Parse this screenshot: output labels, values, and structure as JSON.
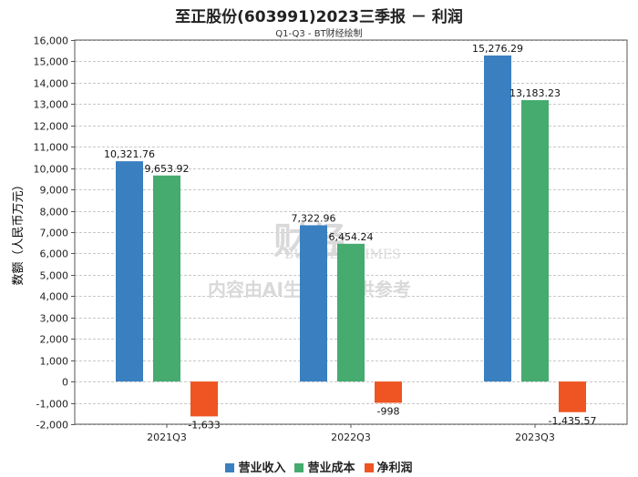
{
  "chart_data": {
    "type": "bar",
    "title": "至正股份(603991)2023三季报 － 利润",
    "subtitle": "Q1-Q3 - BT财经绘制",
    "ylabel": "数额（人民币万元）",
    "xlabel": "",
    "ylim": [
      -2000,
      16000
    ],
    "ytick_step": 1000,
    "grid": true,
    "legend_position": "bottom",
    "categories": [
      "2021Q3",
      "2022Q3",
      "2023Q3"
    ],
    "series": [
      {
        "name": "营业收入",
        "color": "#3a7fc0",
        "values": [
          10321.76,
          7322.96,
          15276.29
        ],
        "labels": [
          "10,321.76",
          "7,322.96",
          "15,276.29"
        ]
      },
      {
        "name": "营业成本",
        "color": "#45ab6f",
        "values": [
          9653.92,
          6454.24,
          13183.23
        ],
        "labels": [
          "9,653.92",
          "6,454.24",
          "13,183.23"
        ]
      },
      {
        "name": "净利润",
        "color": "#ee5522",
        "values": [
          -1633,
          -998,
          -1435.57
        ],
        "labels": [
          "-1,633",
          "-998",
          "-1,435.57"
        ]
      }
    ]
  },
  "watermark": {
    "brand": "财经",
    "brand_en": "BUSINESSTIMES",
    "notice": "内容由AI生成，仅供参考"
  }
}
